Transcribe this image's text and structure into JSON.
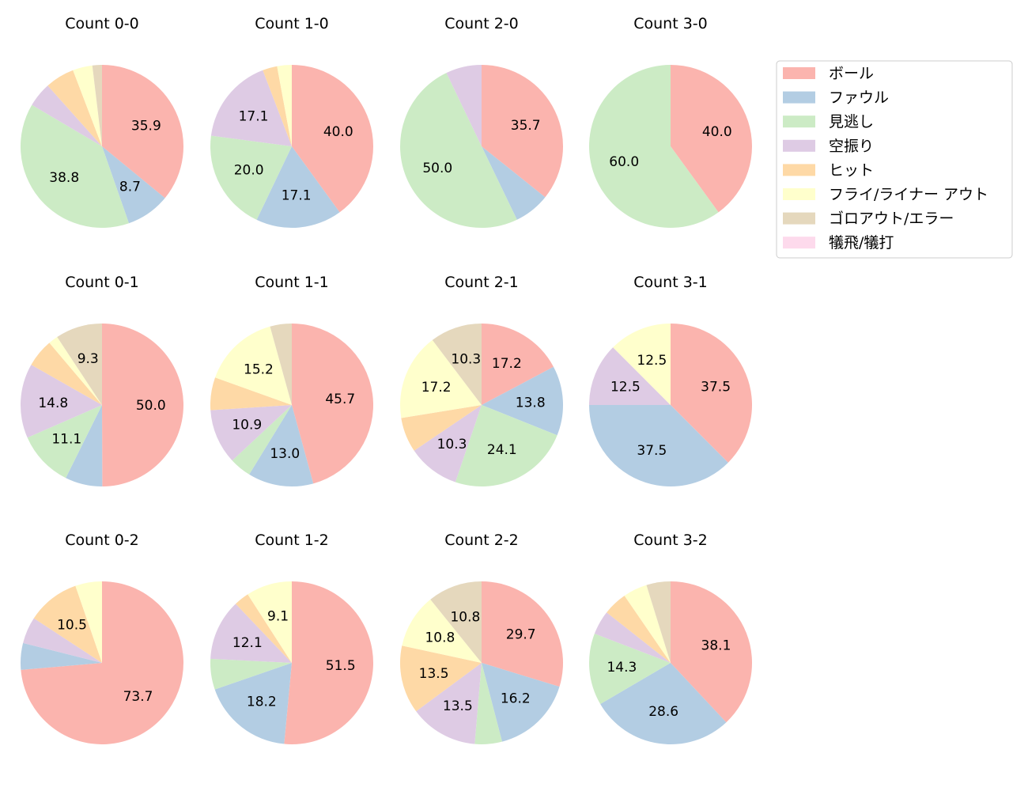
{
  "chart_data": {
    "type": "pie",
    "categories": [
      "ボール",
      "ファウル",
      "見逃し",
      "空振り",
      "ヒット",
      "フライ/ライナー アウト",
      "ゴロアウト/エラー",
      "犠飛/犠打"
    ],
    "colors": [
      "#fbb4ae",
      "#b3cde3",
      "#ccebc5",
      "#decbe4",
      "#fed9a6",
      "#ffffcc",
      "#e5d8bd",
      "#fddaec"
    ],
    "start_angle": 90,
    "direction": "clockwise",
    "legend_position": "right",
    "charts": [
      {
        "title": "Count 0-0",
        "values": [
          35.9,
          8.7,
          38.8,
          4.9,
          5.8,
          3.9,
          1.9,
          0
        ]
      },
      {
        "title": "Count 1-0",
        "values": [
          40.0,
          17.1,
          20.0,
          17.1,
          2.9,
          2.9,
          0,
          0
        ]
      },
      {
        "title": "Count 2-0",
        "values": [
          35.7,
          7.1,
          50.0,
          7.1,
          0,
          0,
          0,
          0
        ]
      },
      {
        "title": "Count 3-0",
        "values": [
          40.0,
          0,
          60.0,
          0,
          0,
          0,
          0,
          0
        ]
      },
      {
        "title": "Count 0-1",
        "values": [
          50.0,
          7.4,
          11.1,
          14.8,
          5.6,
          1.9,
          9.3,
          0
        ]
      },
      {
        "title": "Count 1-1",
        "values": [
          45.7,
          13.0,
          4.3,
          10.9,
          6.5,
          15.2,
          4.3,
          0
        ]
      },
      {
        "title": "Count 2-1",
        "values": [
          17.2,
          13.8,
          24.1,
          10.3,
          6.9,
          17.2,
          10.3,
          0
        ]
      },
      {
        "title": "Count 3-1",
        "values": [
          37.5,
          37.5,
          0,
          12.5,
          0,
          12.5,
          0,
          0
        ]
      },
      {
        "title": "Count 0-2",
        "values": [
          73.7,
          5.3,
          0,
          5.3,
          10.5,
          5.3,
          0,
          0
        ]
      },
      {
        "title": "Count 1-2",
        "values": [
          51.5,
          18.2,
          6.1,
          12.1,
          3.0,
          9.1,
          0,
          0
        ]
      },
      {
        "title": "Count 2-2",
        "values": [
          29.7,
          16.2,
          5.4,
          13.5,
          13.5,
          10.8,
          10.8,
          0
        ]
      },
      {
        "title": "Count 3-2",
        "values": [
          38.1,
          28.6,
          14.3,
          4.8,
          4.8,
          4.8,
          4.8,
          0
        ]
      }
    ]
  }
}
